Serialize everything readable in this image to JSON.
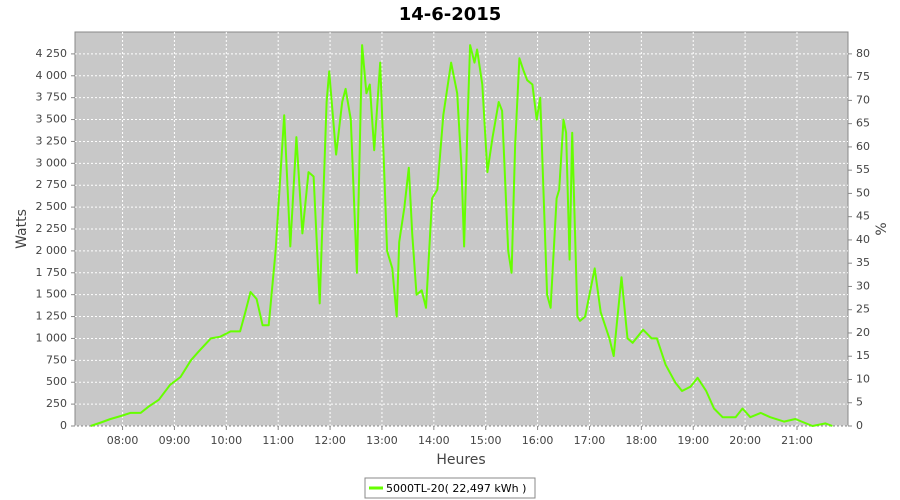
{
  "chart_data": {
    "type": "line",
    "title": "14-6-2015",
    "x_label": "Heures",
    "y_label": "Watts",
    "y2_label": "%",
    "grid": true,
    "legend": "bottom",
    "x": [
      "07:23",
      "07:35",
      "07:46",
      "08:00",
      "08:09",
      "08:21",
      "08:30",
      "08:42",
      "08:55",
      "09:07",
      "09:19",
      "09:28",
      "09:42",
      "09:53",
      "10:05",
      "10:16",
      "10:22",
      "10:28",
      "10:35",
      "10:42",
      "10:49",
      "10:57",
      "11:07",
      "11:14",
      "11:21",
      "11:28",
      "11:35",
      "11:41",
      "11:48",
      "11:56",
      "11:59",
      "12:07",
      "12:14",
      "12:18",
      "12:24",
      "12:31",
      "12:37",
      "12:42",
      "12:46",
      "12:51",
      "12:58",
      "13:06",
      "13:12",
      "13:17",
      "13:20",
      "13:26",
      "13:31",
      "13:35",
      "13:40",
      "13:46",
      "13:51",
      "13:58",
      "14:04",
      "14:11",
      "14:20",
      "14:27",
      "14:32",
      "14:35",
      "14:39",
      "14:42",
      "14:47",
      "14:50",
      "14:56",
      "15:02",
      "15:08",
      "15:15",
      "15:19",
      "15:26",
      "15:30",
      "15:34",
      "15:39",
      "15:44",
      "15:48",
      "15:54",
      "15:59",
      "16:03",
      "16:11",
      "16:15",
      "16:22",
      "16:25",
      "16:30",
      "16:33",
      "16:37",
      "16:40",
      "16:46",
      "16:49",
      "16:55",
      "17:06",
      "17:13",
      "17:23",
      "17:28",
      "17:32",
      "17:37",
      "17:44",
      "17:50",
      "17:54",
      "18:02",
      "18:12",
      "18:18",
      "18:28",
      "18:39",
      "18:47",
      "18:57",
      "19:05",
      "19:15",
      "19:24",
      "19:34",
      "19:49",
      "19:57",
      "20:06",
      "20:18",
      "20:29",
      "20:45",
      "20:58",
      "21:18",
      "21:33",
      "21:41"
    ],
    "series": [
      {
        "name": "5000TL-20( 22,497 kWh )",
        "color": "#66ff00",
        "values": [
          0,
          40,
          80,
          120,
          150,
          150,
          220,
          300,
          470,
          560,
          750,
          850,
          1000,
          1020,
          1080,
          1080,
          1300,
          1530,
          1450,
          1150,
          1150,
          2000,
          3550,
          2050,
          3300,
          2200,
          2900,
          2850,
          1400,
          3700,
          4050,
          3100,
          3700,
          3850,
          3500,
          1750,
          4350,
          3800,
          3900,
          3150,
          4150,
          2000,
          1800,
          1250,
          2100,
          2500,
          2950,
          2200,
          1500,
          1550,
          1350,
          2600,
          2700,
          3550,
          4150,
          3800,
          2950,
          2050,
          3500,
          4350,
          4150,
          4300,
          3900,
          2900,
          3300,
          3700,
          3600,
          2000,
          1750,
          3200,
          4200,
          4050,
          3950,
          3900,
          3500,
          3750,
          1500,
          1350,
          2600,
          2700,
          3500,
          3350,
          1900,
          3350,
          1250,
          1200,
          1250,
          1800,
          1300,
          1000,
          800,
          1200,
          1700,
          1000,
          950,
          1000,
          1100,
          1000,
          1000,
          700,
          500,
          400,
          450,
          550,
          400,
          200,
          100,
          100,
          200,
          100,
          150,
          100,
          50,
          80,
          0,
          30,
          0
        ]
      }
    ],
    "xlim": [
      "07:05",
      "21:59"
    ],
    "xticks": [
      "08:00",
      "09:00",
      "10:00",
      "11:00",
      "12:00",
      "13:00",
      "14:00",
      "15:00",
      "16:00",
      "17:00",
      "18:00",
      "19:00",
      "20:00",
      "21:00"
    ],
    "ylim": [
      0,
      4500
    ],
    "yticks": [
      0,
      250,
      500,
      750,
      {
        "value": 1000,
        "label": "1 000"
      },
      {
        "value": 1250,
        "label": "1 250"
      },
      {
        "value": 1500,
        "label": "1 500"
      },
      {
        "value": 1750,
        "label": "1 750"
      },
      {
        "value": 2000,
        "label": "2 000"
      },
      {
        "value": 2250,
        "label": "2 250"
      },
      {
        "value": 2500,
        "label": "2 500"
      },
      {
        "value": 2750,
        "label": "2 750"
      },
      {
        "value": 3000,
        "label": "3 000"
      },
      {
        "value": 3250,
        "label": "3 250"
      },
      {
        "value": 3500,
        "label": "3 500"
      },
      {
        "value": 3750,
        "label": "3 750"
      },
      {
        "value": 4000,
        "label": "4 000"
      },
      {
        "value": 4250,
        "label": "4 250"
      }
    ],
    "y2lim": [
      0,
      84.7
    ],
    "y2ticks": [
      0,
      5,
      10,
      15,
      20,
      25,
      30,
      35,
      40,
      45,
      50,
      55,
      60,
      65,
      70,
      75,
      80
    ]
  }
}
